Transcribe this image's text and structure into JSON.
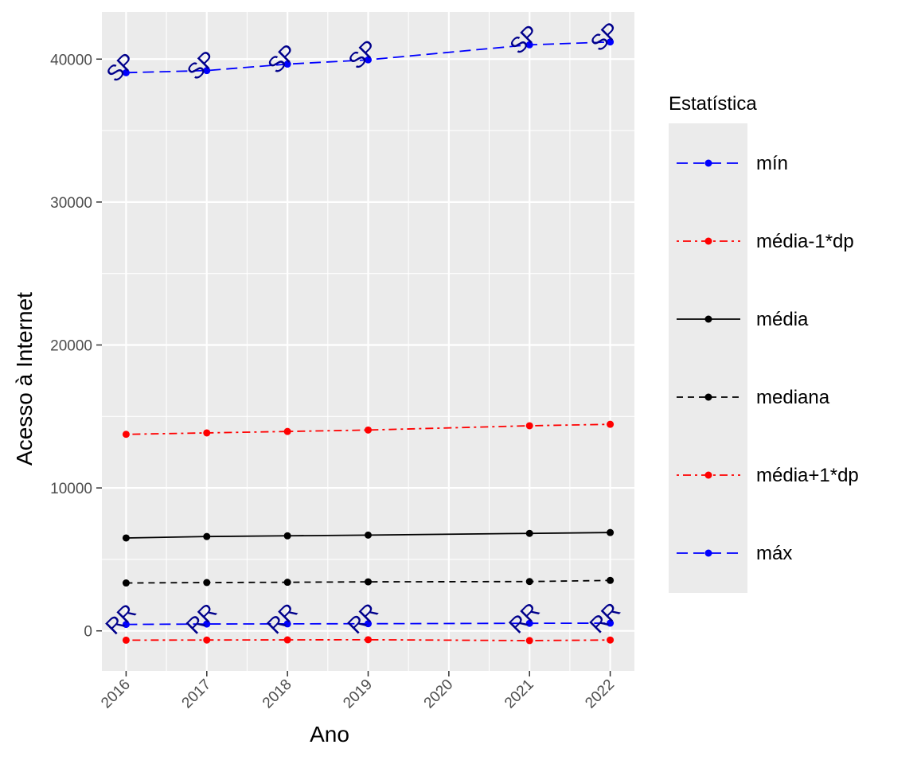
{
  "chart_data": {
    "type": "line",
    "title": "",
    "xlabel": "Ano",
    "ylabel": "Acesso à Internet",
    "x": [
      2016,
      2017,
      2018,
      2019,
      2021,
      2022
    ],
    "x_ticks": [
      "2016",
      "2017",
      "2018",
      "2019",
      "2020",
      "2021",
      "2022"
    ],
    "y_ticks": [
      "0",
      "10000",
      "20000",
      "30000",
      "40000"
    ],
    "xlim": [
      2015.7,
      2022.3
    ],
    "ylim": [
      -2800,
      43300
    ],
    "grid": true,
    "legend": {
      "title": "Estatística",
      "placement": "right",
      "entries": [
        "mín",
        "média-1*dp",
        "média",
        "mediana",
        "média+1*dp",
        "máx"
      ]
    },
    "series": [
      {
        "name": "mín",
        "color": "#0000ff",
        "linestyle": "longdash",
        "values": [
          450,
          480,
          490,
          500,
          530,
          540
        ],
        "point_labels": [
          "RR",
          "RR",
          "RR",
          "RR",
          "RR",
          "RR"
        ]
      },
      {
        "name": "média-1*dp",
        "color": "#ff0000",
        "linestyle": "dotdash",
        "values": [
          -650,
          -640,
          -630,
          -620,
          -680,
          -640
        ]
      },
      {
        "name": "média",
        "color": "#000000",
        "linestyle": "solid",
        "values": [
          6500,
          6600,
          6650,
          6700,
          6820,
          6880
        ]
      },
      {
        "name": "mediana",
        "color": "#000000",
        "linestyle": "dashed",
        "values": [
          3350,
          3380,
          3400,
          3430,
          3450,
          3530
        ]
      },
      {
        "name": "média+1*dp",
        "color": "#ff0000",
        "linestyle": "dotdash",
        "values": [
          13750,
          13850,
          13950,
          14050,
          14350,
          14450
        ]
      },
      {
        "name": "máx",
        "color": "#0000ff",
        "linestyle": "longdash",
        "values": [
          39050,
          39200,
          39650,
          39950,
          41000,
          41200
        ],
        "point_labels": [
          "SP",
          "SP",
          "SP",
          "SP",
          "SP",
          "SP"
        ]
      }
    ],
    "point_label_color": "#00008b",
    "panel_background": "#ebebeb",
    "grid_color": "#ffffff"
  }
}
